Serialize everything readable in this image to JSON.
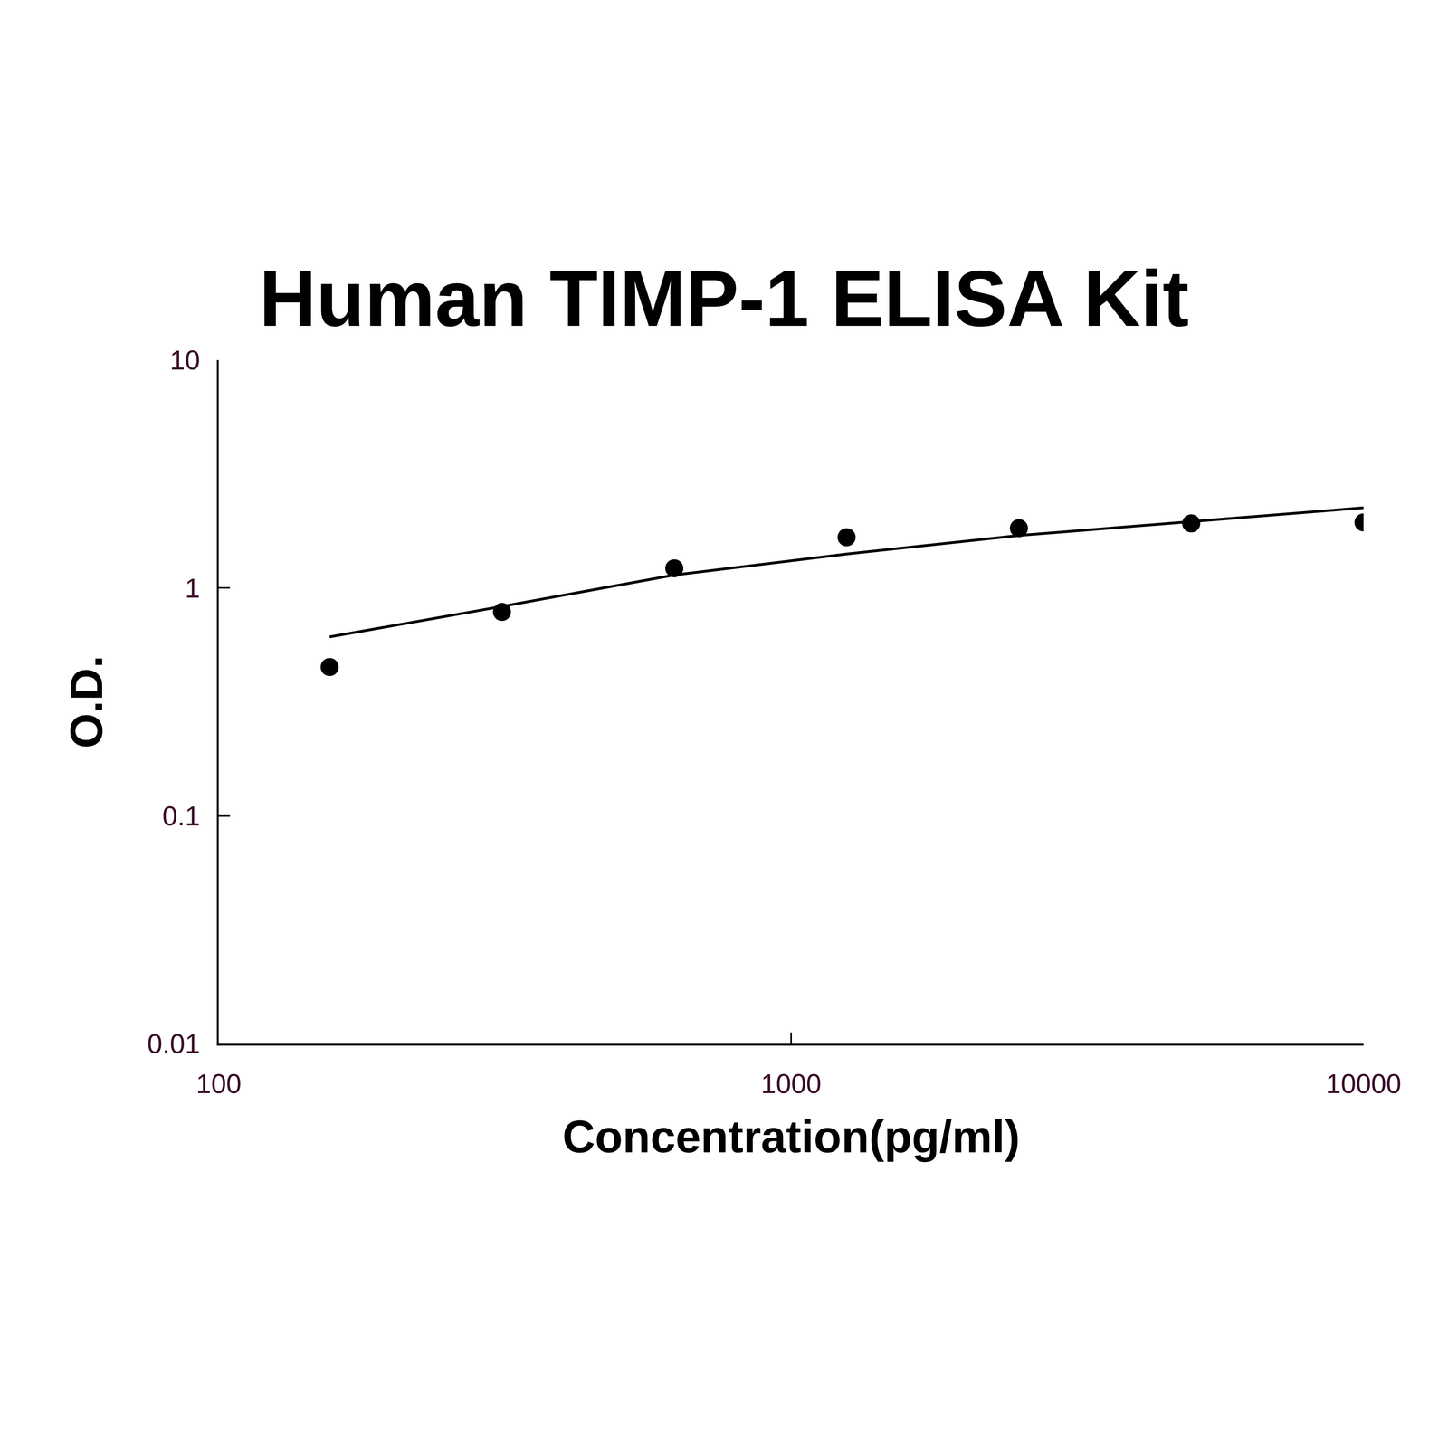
{
  "chart_data": {
    "type": "scatter",
    "title": "Human TIMP-1 ELISA Kit",
    "x_label": "Concentration(pg/ml)",
    "y_label": "O.D.",
    "x": [
      156.25,
      312.5,
      625,
      1250,
      2500,
      5000,
      10000
    ],
    "series": [
      {
        "type": "scatter",
        "marker": "circle",
        "color": "#000000",
        "values": [
          0.45,
          0.785,
          1.22,
          1.67,
          1.83,
          1.92,
          1.94
        ]
      },
      {
        "type": "line",
        "line_style": "solid",
        "color": "#000000",
        "values": [
          0.61,
          0.83,
          1.14,
          1.41,
          1.7,
          1.96,
          2.25
        ]
      }
    ],
    "log": true,
    "xlim": [
      100,
      10000
    ],
    "xticks": [
      100,
      1000,
      10000
    ],
    "ylim": [
      0.01,
      10
    ],
    "yticks": [
      0.01,
      0.1,
      1,
      10
    ],
    "grid": false
  }
}
